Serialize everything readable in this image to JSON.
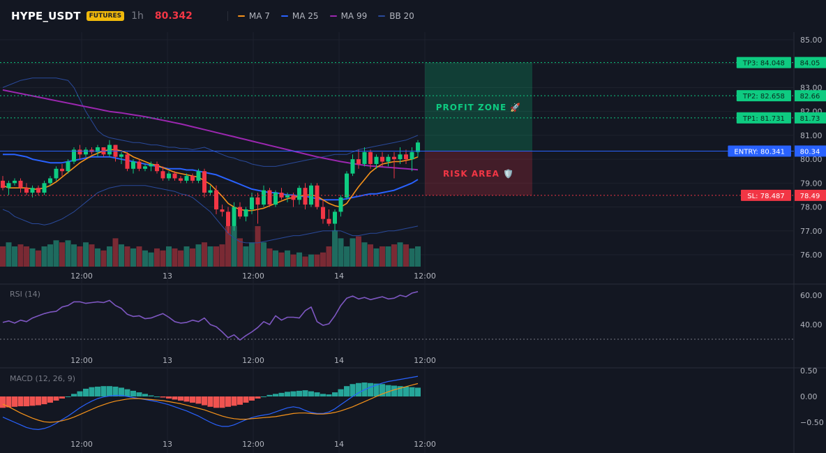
{
  "header": {
    "symbol": "HYPE_USDT",
    "badge": "FUTURES",
    "interval": "1h",
    "last_price": "80.342",
    "legend": [
      {
        "label": "MA 7",
        "color": "#f7931a"
      },
      {
        "label": "MA 25",
        "color": "#2962ff"
      },
      {
        "label": "MA 99",
        "color": "#9c27b0"
      },
      {
        "label": "BB 20",
        "color": "#2a4a9b"
      }
    ]
  },
  "colors": {
    "up": "#26a69a",
    "up_candle": "#0ecb81",
    "down": "#f23645",
    "vol_up": "#1e6b5f",
    "vol_down": "#7a2a34",
    "ma7": "#f7931a",
    "ma25": "#2962ff",
    "ma99": "#9c27b0",
    "bb": "#2a4a9b",
    "rsi": "#7e57c2",
    "macd": "#2962ff",
    "signal": "#f7931a",
    "hist_up": "#26a69a",
    "hist_down": "#f05350"
  },
  "chart_data": {
    "type": "candlestick",
    "ylim": [
      75.6,
      85.2
    ],
    "y_ticks": [
      "85.00",
      "84.00",
      "83.00",
      "82.00",
      "81.00",
      "80.00",
      "79.00",
      "78.00",
      "77.00",
      "76.00"
    ],
    "x_ticks": [
      "12:00",
      "13",
      "12:00",
      "14",
      "12:00"
    ],
    "candles": [
      [
        79.1,
        79.3,
        78.7,
        78.8
      ],
      [
        78.8,
        79.1,
        78.5,
        79.0
      ],
      [
        79.0,
        79.2,
        78.9,
        79.1
      ],
      [
        79.1,
        79.2,
        78.6,
        78.8
      ],
      [
        78.8,
        79.0,
        78.5,
        78.6
      ],
      [
        78.6,
        78.9,
        78.4,
        78.8
      ],
      [
        78.8,
        78.9,
        78.5,
        78.6
      ],
      [
        78.6,
        79.1,
        78.5,
        79.0
      ],
      [
        79.0,
        79.3,
        78.9,
        79.2
      ],
      [
        79.2,
        79.7,
        79.1,
        79.6
      ],
      [
        79.6,
        79.8,
        79.3,
        79.5
      ],
      [
        79.5,
        80.0,
        79.4,
        79.9
      ],
      [
        79.9,
        80.5,
        79.8,
        80.4
      ],
      [
        80.4,
        80.6,
        80.0,
        80.2
      ],
      [
        80.2,
        80.5,
        80.1,
        80.4
      ],
      [
        80.4,
        80.5,
        80.2,
        80.3
      ],
      [
        80.3,
        80.6,
        80.1,
        80.5
      ],
      [
        80.5,
        80.5,
        80.1,
        80.2
      ],
      [
        80.2,
        80.8,
        80.1,
        80.6
      ],
      [
        80.6,
        80.6,
        79.9,
        80.1
      ],
      [
        80.1,
        80.3,
        79.8,
        80.2
      ],
      [
        80.2,
        80.3,
        79.5,
        79.6
      ],
      [
        79.6,
        80.0,
        79.4,
        79.9
      ],
      [
        79.9,
        80.0,
        79.5,
        79.6
      ],
      [
        79.6,
        79.8,
        79.5,
        79.7
      ],
      [
        79.7,
        79.9,
        79.5,
        79.8
      ],
      [
        79.8,
        79.9,
        79.4,
        79.5
      ],
      [
        79.5,
        79.7,
        79.1,
        79.2
      ],
      [
        79.2,
        79.5,
        79.1,
        79.4
      ],
      [
        79.4,
        79.5,
        79.1,
        79.2
      ],
      [
        79.2,
        79.3,
        79.0,
        79.1
      ],
      [
        79.1,
        79.4,
        79.0,
        79.3
      ],
      [
        79.3,
        79.4,
        79.0,
        79.1
      ],
      [
        79.1,
        79.6,
        79.0,
        79.5
      ],
      [
        79.5,
        79.6,
        78.4,
        78.6
      ],
      [
        78.6,
        78.9,
        78.5,
        78.7
      ],
      [
        78.7,
        78.9,
        77.7,
        77.9
      ],
      [
        77.9,
        78.1,
        77.6,
        77.8
      ],
      [
        77.8,
        78.0,
        76.9,
        77.2
      ],
      [
        77.2,
        78.2,
        77.0,
        78.0
      ],
      [
        78.0,
        78.2,
        77.5,
        77.6
      ],
      [
        77.6,
        78.0,
        77.4,
        77.9
      ],
      [
        77.9,
        78.6,
        77.7,
        78.4
      ],
      [
        78.4,
        78.6,
        77.3,
        78.1
      ],
      [
        78.1,
        78.9,
        78.0,
        78.7
      ],
      [
        78.7,
        78.8,
        78.0,
        78.1
      ],
      [
        78.1,
        78.7,
        78.0,
        78.6
      ],
      [
        78.6,
        78.8,
        78.3,
        78.4
      ],
      [
        78.4,
        78.6,
        78.2,
        78.5
      ],
      [
        78.5,
        78.6,
        78.0,
        78.3
      ],
      [
        78.3,
        78.9,
        78.1,
        78.8
      ],
      [
        78.8,
        79.0,
        77.9,
        78.1
      ],
      [
        78.1,
        79.0,
        78.0,
        78.9
      ],
      [
        78.9,
        79.0,
        77.9,
        78.0
      ],
      [
        78.0,
        78.3,
        77.3,
        77.5
      ],
      [
        77.5,
        77.9,
        77.2,
        77.3
      ],
      [
        77.3,
        77.9,
        77.0,
        77.8
      ],
      [
        77.8,
        78.5,
        77.6,
        78.4
      ],
      [
        78.4,
        79.5,
        78.3,
        79.4
      ],
      [
        79.4,
        80.2,
        79.3,
        80.0
      ],
      [
        80.0,
        80.4,
        79.6,
        79.8
      ],
      [
        79.8,
        80.5,
        79.7,
        80.3
      ],
      [
        80.3,
        80.4,
        79.6,
        79.8
      ],
      [
        79.8,
        80.2,
        79.6,
        80.1
      ],
      [
        80.1,
        80.3,
        79.7,
        79.9
      ],
      [
        79.9,
        80.2,
        79.7,
        80.1
      ],
      [
        80.1,
        80.3,
        79.2,
        80.0
      ],
      [
        80.0,
        80.5,
        79.8,
        80.2
      ],
      [
        80.2,
        80.4,
        79.8,
        80.0
      ],
      [
        80.0,
        80.5,
        79.5,
        80.3
      ],
      [
        80.3,
        80.8,
        80.1,
        80.7
      ]
    ],
    "volume": [
      0.5,
      0.6,
      0.5,
      0.55,
      0.5,
      0.45,
      0.4,
      0.5,
      0.55,
      0.65,
      0.6,
      0.65,
      0.55,
      0.5,
      0.6,
      0.55,
      0.45,
      0.4,
      0.5,
      0.7,
      0.55,
      0.5,
      0.45,
      0.5,
      0.4,
      0.35,
      0.45,
      0.4,
      0.5,
      0.45,
      0.4,
      0.5,
      0.45,
      0.55,
      0.6,
      0.5,
      0.5,
      0.55,
      1.0,
      1.0,
      0.7,
      0.5,
      0.6,
      1.0,
      0.6,
      0.45,
      0.4,
      0.35,
      0.4,
      0.3,
      0.35,
      0.25,
      0.3,
      0.3,
      0.35,
      0.5,
      0.9,
      0.7,
      0.5,
      0.7,
      0.75,
      0.6,
      0.55,
      0.45,
      0.5,
      0.5,
      0.55,
      0.6,
      0.55,
      0.45,
      0.5
    ],
    "ma7": [
      78.9,
      78.8,
      78.8,
      78.8,
      78.8,
      78.75,
      78.75,
      78.8,
      78.9,
      79.05,
      79.25,
      79.45,
      79.65,
      79.85,
      80.0,
      80.15,
      80.25,
      80.35,
      80.4,
      80.4,
      80.35,
      80.25,
      80.1,
      80.0,
      79.9,
      79.8,
      79.75,
      79.65,
      79.55,
      79.45,
      79.4,
      79.35,
      79.3,
      79.25,
      79.1,
      78.95,
      78.7,
      78.45,
      78.15,
      78.0,
      77.9,
      77.85,
      77.85,
      77.9,
      77.95,
      78.05,
      78.15,
      78.25,
      78.35,
      78.4,
      78.45,
      78.5,
      78.5,
      78.45,
      78.3,
      78.15,
      78.05,
      78.0,
      78.15,
      78.5,
      78.85,
      79.15,
      79.45,
      79.65,
      79.8,
      79.85,
      79.9,
      79.9,
      79.95,
      80.0,
      80.1
    ],
    "ma25": [
      80.2,
      80.2,
      80.2,
      80.15,
      80.1,
      80.0,
      79.95,
      79.9,
      79.85,
      79.85,
      79.85,
      79.9,
      79.95,
      80.0,
      80.05,
      80.1,
      80.1,
      80.1,
      80.1,
      80.05,
      80.0,
      79.95,
      79.9,
      79.85,
      79.8,
      79.75,
      79.7,
      79.65,
      79.6,
      79.6,
      79.6,
      79.55,
      79.55,
      79.5,
      79.45,
      79.4,
      79.35,
      79.25,
      79.15,
      79.05,
      78.95,
      78.85,
      78.75,
      78.7,
      78.65,
      78.6,
      78.6,
      78.55,
      78.5,
      78.5,
      78.45,
      78.45,
      78.4,
      78.35,
      78.3,
      78.3,
      78.3,
      78.3,
      78.35,
      78.4,
      78.45,
      78.5,
      78.55,
      78.55,
      78.6,
      78.65,
      78.7,
      78.8,
      78.9,
      79.0,
      79.15
    ],
    "ma99": [
      82.9,
      82.85,
      82.8,
      82.75,
      82.7,
      82.65,
      82.6,
      82.55,
      82.5,
      82.45,
      82.4,
      82.35,
      82.3,
      82.25,
      82.2,
      82.15,
      82.1,
      82.05,
      82.0,
      81.97,
      81.94,
      81.9,
      81.86,
      81.82,
      81.78,
      81.73,
      81.68,
      81.63,
      81.58,
      81.53,
      81.48,
      81.42,
      81.36,
      81.3,
      81.24,
      81.18,
      81.12,
      81.06,
      81.0,
      80.94,
      80.88,
      80.82,
      80.76,
      80.7,
      80.64,
      80.58,
      80.52,
      80.46,
      80.4,
      80.34,
      80.28,
      80.22,
      80.16,
      80.1,
      80.05,
      80.0,
      79.95,
      79.9,
      79.86,
      79.82,
      79.78,
      79.75,
      79.72,
      79.7,
      79.68,
      79.66,
      79.64,
      79.62,
      79.6,
      79.58,
      79.56
    ],
    "bb_upper": [
      83.0,
      83.1,
      83.2,
      83.3,
      83.35,
      83.4,
      83.4,
      83.4,
      83.4,
      83.4,
      83.35,
      83.3,
      83.0,
      82.5,
      82.0,
      81.6,
      81.2,
      81.0,
      80.9,
      80.85,
      80.8,
      80.75,
      80.7,
      80.7,
      80.65,
      80.6,
      80.6,
      80.55,
      80.5,
      80.5,
      80.45,
      80.45,
      80.4,
      80.45,
      80.5,
      80.4,
      80.3,
      80.2,
      80.1,
      80.05,
      79.95,
      79.9,
      79.8,
      79.75,
      79.7,
      79.7,
      79.7,
      79.75,
      79.8,
      79.85,
      79.9,
      79.95,
      80.0,
      80.05,
      80.1,
      80.15,
      80.2,
      80.2,
      80.2,
      80.3,
      80.4,
      80.45,
      80.5,
      80.55,
      80.6,
      80.65,
      80.7,
      80.75,
      80.8,
      80.9,
      81.0
    ],
    "bb_lower": [
      77.9,
      77.8,
      77.6,
      77.5,
      77.4,
      77.3,
      77.3,
      77.25,
      77.3,
      77.4,
      77.5,
      77.65,
      77.8,
      78.0,
      78.2,
      78.4,
      78.6,
      78.7,
      78.8,
      78.85,
      78.9,
      78.9,
      78.9,
      78.9,
      78.9,
      78.85,
      78.8,
      78.75,
      78.7,
      78.65,
      78.55,
      78.5,
      78.4,
      78.2,
      78.0,
      77.8,
      77.5,
      77.2,
      76.9,
      76.7,
      76.55,
      76.5,
      76.5,
      76.5,
      76.55,
      76.6,
      76.65,
      76.7,
      76.75,
      76.8,
      76.8,
      76.85,
      76.9,
      76.95,
      77.0,
      77.0,
      77.0,
      77.0,
      76.9,
      76.8,
      76.8,
      76.85,
      76.9,
      76.9,
      76.95,
      77.0,
      77.0,
      77.05,
      77.1,
      77.15,
      77.2
    ],
    "levels": [
      {
        "name": "TP3",
        "value": 84.048,
        "label": "TP3: 84.048",
        "axis": "84.05",
        "color": "#0ecb81"
      },
      {
        "name": "TP2",
        "value": 82.658,
        "label": "TP2: 82.658",
        "axis": "82.66",
        "color": "#0ecb81"
      },
      {
        "name": "TP1",
        "value": 81.731,
        "label": "TP1: 81.731",
        "axis": "81.73",
        "color": "#0ecb81"
      },
      {
        "name": "ENTRY",
        "value": 80.341,
        "label": "ENTRY: 80.341",
        "axis": "80.34",
        "color": "#2962ff"
      },
      {
        "name": "SL",
        "value": 78.487,
        "label": "SL: 78.487",
        "axis": "78.49",
        "color": "#f23645"
      }
    ],
    "zones": {
      "profit_label": "PROFIT ZONE 🚀",
      "risk_label": "RISK AREA 🛡️"
    },
    "rsi": {
      "label": "RSI (14)",
      "ylim": [
        26,
        64
      ],
      "y_ticks": [
        "60.00",
        "40.00"
      ],
      "guide": 30,
      "values": [
        41.5,
        42.5,
        41.0,
        43.0,
        42.0,
        44.5,
        46.0,
        47.5,
        48.5,
        49.0,
        52.0,
        53.0,
        55.5,
        55.5,
        54.5,
        55.0,
        55.5,
        55.0,
        56.5,
        53.0,
        51.0,
        47.0,
        45.5,
        46.0,
        44.0,
        44.5,
        46.0,
        47.5,
        45.0,
        42.0,
        41.0,
        41.5,
        43.0,
        42.0,
        44.5,
        40.0,
        38.5,
        35.0,
        31.0,
        33.0,
        29.5,
        32.5,
        35.0,
        38.0,
        42.0,
        40.0,
        46.0,
        43.0,
        45.0,
        45.0,
        44.5,
        49.5,
        52.0,
        42.0,
        39.5,
        40.5,
        46.0,
        53.0,
        58.0,
        59.5,
        57.5,
        58.5,
        57.0,
        58.0,
        59.0,
        57.5,
        58.0,
        60.0,
        59.0,
        61.5,
        62.5
      ]
    },
    "macd": {
      "label": "MACD (12, 26, 9)",
      "ylim": [
        -0.72,
        0.55
      ],
      "y_ticks": [
        "0.50",
        "0.00",
        "−0.50"
      ],
      "hist": [
        -0.22,
        -0.21,
        -0.2,
        -0.19,
        -0.19,
        -0.18,
        -0.17,
        -0.15,
        -0.12,
        -0.08,
        -0.04,
        0.0,
        0.05,
        0.1,
        0.15,
        0.18,
        0.19,
        0.2,
        0.2,
        0.19,
        0.17,
        0.14,
        0.11,
        0.08,
        0.05,
        0.02,
        0.0,
        -0.02,
        -0.04,
        -0.06,
        -0.08,
        -0.1,
        -0.12,
        -0.14,
        -0.17,
        -0.2,
        -0.22,
        -0.22,
        -0.2,
        -0.18,
        -0.16,
        -0.12,
        -0.08,
        -0.04,
        0.0,
        0.03,
        0.05,
        0.07,
        0.09,
        0.1,
        0.11,
        0.12,
        0.1,
        0.08,
        0.05,
        0.04,
        0.08,
        0.14,
        0.2,
        0.24,
        0.26,
        0.27,
        0.26,
        0.25,
        0.24,
        0.22,
        0.21,
        0.2,
        0.19,
        0.18,
        0.17
      ],
      "macd_line": [
        -0.4,
        -0.45,
        -0.5,
        -0.55,
        -0.6,
        -0.63,
        -0.64,
        -0.62,
        -0.58,
        -0.52,
        -0.45,
        -0.38,
        -0.3,
        -0.22,
        -0.15,
        -0.09,
        -0.04,
        -0.01,
        0.01,
        0.02,
        0.02,
        0.0,
        -0.02,
        -0.04,
        -0.06,
        -0.08,
        -0.1,
        -0.13,
        -0.16,
        -0.2,
        -0.24,
        -0.28,
        -0.33,
        -0.38,
        -0.44,
        -0.5,
        -0.55,
        -0.58,
        -0.58,
        -0.55,
        -0.5,
        -0.45,
        -0.41,
        -0.38,
        -0.36,
        -0.34,
        -0.3,
        -0.26,
        -0.22,
        -0.2,
        -0.22,
        -0.27,
        -0.31,
        -0.33,
        -0.33,
        -0.3,
        -0.24,
        -0.16,
        -0.08,
        0.0,
        0.07,
        0.13,
        0.18,
        0.22,
        0.26,
        0.29,
        0.31,
        0.33,
        0.35,
        0.37,
        0.39
      ],
      "signal_line": [
        -0.15,
        -0.2,
        -0.26,
        -0.32,
        -0.37,
        -0.42,
        -0.46,
        -0.49,
        -0.5,
        -0.49,
        -0.47,
        -0.44,
        -0.4,
        -0.35,
        -0.3,
        -0.25,
        -0.2,
        -0.16,
        -0.12,
        -0.09,
        -0.07,
        -0.05,
        -0.04,
        -0.04,
        -0.05,
        -0.06,
        -0.07,
        -0.08,
        -0.1,
        -0.12,
        -0.14,
        -0.17,
        -0.2,
        -0.23,
        -0.26,
        -0.3,
        -0.34,
        -0.38,
        -0.41,
        -0.43,
        -0.44,
        -0.44,
        -0.43,
        -0.42,
        -0.41,
        -0.4,
        -0.39,
        -0.37,
        -0.35,
        -0.33,
        -0.32,
        -0.32,
        -0.33,
        -0.34,
        -0.34,
        -0.33,
        -0.31,
        -0.28,
        -0.24,
        -0.2,
        -0.15,
        -0.1,
        -0.05,
        0.0,
        0.05,
        0.09,
        0.13,
        0.16,
        0.19,
        0.22,
        0.25
      ]
    }
  }
}
